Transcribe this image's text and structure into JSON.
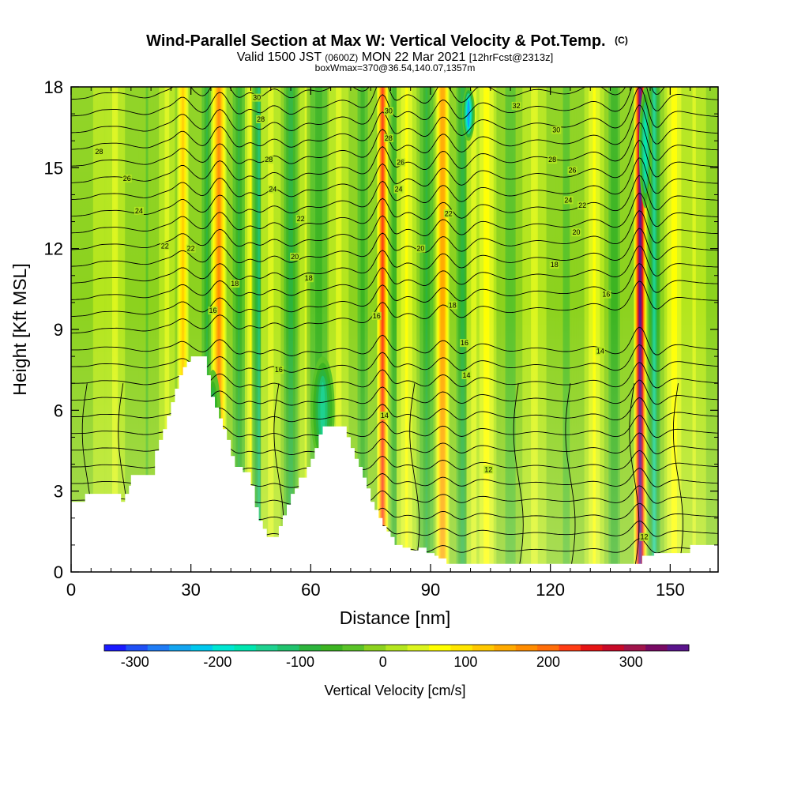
{
  "chart_data": {
    "type": "heatmap",
    "title": "Wind-Parallel Section at Max W: Vertical Velocity & Pot.Temp.",
    "title_mark": "(C)",
    "subtitle_parts": [
      "Valid 1500 JST",
      "(0600Z)",
      "MON 22 Mar 2021",
      "[12hrFcst@2313z]"
    ],
    "subtitle2": "boxWmax=370@36.54,140.07,1357m",
    "xlabel": "Distance [nm]",
    "ylabel": "Height [Kft MSL]",
    "xlim": [
      0,
      162
    ],
    "ylim": [
      0,
      18
    ],
    "xticks": [
      "0",
      "30",
      "60",
      "90",
      "120",
      "150"
    ],
    "yticks": [
      "0",
      "3",
      "6",
      "9",
      "12",
      "15",
      "18"
    ],
    "colorbar": {
      "label": "Vertical Velocity [cm/s]",
      "ticks": [
        "-300",
        "-200",
        "-100",
        "0",
        "100",
        "200",
        "300"
      ],
      "range": [
        -337,
        370
      ],
      "colors": [
        "#1a1aff",
        "#1f50f5",
        "#1f7cf5",
        "#13a5f0",
        "#00c8ee",
        "#00e6d2",
        "#00e6b0",
        "#1ed290",
        "#20c36e",
        "#2cb43c",
        "#3cb422",
        "#5ac328",
        "#8cd21e",
        "#b4e61e",
        "#dcf51e",
        "#ffff00",
        "#ffe600",
        "#ffc800",
        "#ffaa00",
        "#ff8c00",
        "#ff6e0a",
        "#ff3c14",
        "#e61414",
        "#c80a28",
        "#a0144b",
        "#780a64",
        "#5a148c"
      ]
    },
    "vertical_velocity_bands": [
      {
        "x": 7,
        "w": 1.5,
        "v": 25
      },
      {
        "x": 11,
        "w": 2.5,
        "v": 40
      },
      {
        "x": 19,
        "w": 2,
        "v": -25
      },
      {
        "x": 24,
        "w": 2,
        "v": 35
      },
      {
        "x": 28,
        "w": 1.5,
        "v": 120
      },
      {
        "x": 34,
        "w": 1.5,
        "v": -80
      },
      {
        "x": 37,
        "w": 2,
        "v": 175
      },
      {
        "x": 42,
        "w": 1.8,
        "v": -85
      },
      {
        "x": 45,
        "w": 1.5,
        "v": 65
      },
      {
        "x": 47,
        "w": 1.8,
        "v": -110
      },
      {
        "x": 50,
        "w": 2.5,
        "v": 40
      },
      {
        "x": 55,
        "w": 2,
        "v": -95
      },
      {
        "x": 59,
        "w": 1.8,
        "v": 35
      },
      {
        "x": 62,
        "w": 3,
        "v": -60
      },
      {
        "x": 67,
        "w": 2.5,
        "v": 40
      },
      {
        "x": 73,
        "w": 1.8,
        "v": -65
      },
      {
        "x": 78,
        "w": 1.4,
        "v": 230
      },
      {
        "x": 81,
        "w": 1.4,
        "v": -70
      },
      {
        "x": 84,
        "w": 2.5,
        "v": 60
      },
      {
        "x": 89,
        "w": 2,
        "v": -80
      },
      {
        "x": 93,
        "w": 1.8,
        "v": 160
      },
      {
        "x": 98,
        "w": 1.8,
        "v": -90
      },
      {
        "x": 101,
        "w": 2,
        "v": 45
      },
      {
        "x": 104,
        "w": 2.5,
        "v": 75
      },
      {
        "x": 110,
        "w": 3,
        "v": -35
      },
      {
        "x": 116,
        "w": 3,
        "v": 40
      },
      {
        "x": 124,
        "w": 3,
        "v": -30
      },
      {
        "x": 131,
        "w": 2.5,
        "v": 60
      },
      {
        "x": 136,
        "w": 2,
        "v": -70
      },
      {
        "x": 142.5,
        "w": 1.6,
        "v": 370
      },
      {
        "x": 146,
        "w": 1.8,
        "v": -130
      },
      {
        "x": 151,
        "w": 2.5,
        "v": 70
      },
      {
        "x": 156,
        "w": 3,
        "v": 30
      }
    ],
    "extreme_cores": [
      {
        "x": 99.5,
        "y0": 16,
        "y1": 18,
        "v": -240,
        "w": 1.6
      },
      {
        "x": 143.8,
        "y0": 13.5,
        "y1": 18,
        "v": -170,
        "w": 1.6
      },
      {
        "x": 63,
        "y0": 4,
        "y1": 8,
        "v": -130,
        "w": 3
      },
      {
        "x": 35.5,
        "y0": 4,
        "y1": 7.5,
        "v": -120,
        "w": 2
      }
    ],
    "terrain_heights": [
      [
        0,
        2.6
      ],
      [
        3,
        2.6
      ],
      [
        3.5,
        2.9
      ],
      [
        12,
        2.9
      ],
      [
        12.5,
        2.6
      ],
      [
        13.5,
        2.9
      ],
      [
        14.5,
        3.2
      ],
      [
        15,
        3.6
      ],
      [
        19,
        3.6
      ],
      [
        21,
        4.5
      ],
      [
        22,
        4.9
      ],
      [
        23,
        5.3
      ],
      [
        24,
        5.8
      ],
      [
        25,
        6.3
      ],
      [
        26,
        6.8
      ],
      [
        27,
        7.3
      ],
      [
        28,
        7.6
      ],
      [
        29,
        7.8
      ],
      [
        30,
        8.0
      ],
      [
        33,
        8.0
      ],
      [
        34,
        7.3
      ],
      [
        35,
        6.5
      ],
      [
        36,
        6.1
      ],
      [
        37,
        5.7
      ],
      [
        38,
        5.3
      ],
      [
        39,
        4.9
      ],
      [
        40,
        4.3
      ],
      [
        41,
        3.9
      ],
      [
        43,
        3.7
      ],
      [
        45,
        3.2
      ],
      [
        46,
        2.4
      ],
      [
        47,
        1.9
      ],
      [
        48,
        1.6
      ],
      [
        49,
        1.3
      ],
      [
        51,
        1.3
      ],
      [
        52,
        1.7
      ],
      [
        53,
        2.1
      ],
      [
        54,
        2.5
      ],
      [
        55,
        2.9
      ],
      [
        56,
        3.1
      ],
      [
        57,
        3.5
      ],
      [
        59,
        3.9
      ],
      [
        60,
        4.2
      ],
      [
        61,
        4.6
      ],
      [
        62,
        5.1
      ],
      [
        63,
        5.4
      ],
      [
        68,
        5.4
      ],
      [
        69,
        5.0
      ],
      [
        70,
        4.6
      ],
      [
        71,
        4.2
      ],
      [
        72,
        3.9
      ],
      [
        73,
        3.5
      ],
      [
        74,
        3.1
      ],
      [
        75,
        2.6
      ],
      [
        76,
        2.3
      ],
      [
        77,
        2.0
      ],
      [
        78,
        1.7
      ],
      [
        79,
        1.5
      ],
      [
        80,
        1.3
      ],
      [
        81,
        1.0
      ],
      [
        83,
        0.9
      ],
      [
        85,
        0.8
      ],
      [
        87,
        0.9
      ],
      [
        89,
        0.7
      ],
      [
        91,
        0.6
      ],
      [
        92,
        0.5
      ],
      [
        94,
        0.3
      ],
      [
        96,
        0.3
      ],
      [
        141,
        0.3
      ],
      [
        143,
        0.6
      ],
      [
        146,
        0.7
      ],
      [
        151,
        0.7
      ],
      [
        155,
        1.0
      ],
      [
        162,
        1.0
      ]
    ],
    "theta_contour_labels": [
      {
        "text": "28",
        "x": 7,
        "y": 15.6
      },
      {
        "text": "26",
        "x": 14,
        "y": 14.6
      },
      {
        "text": "24",
        "x": 17,
        "y": 13.4
      },
      {
        "text": "22",
        "x": 23.5,
        "y": 12.1
      },
      {
        "text": "22",
        "x": 30,
        "y": 12.0
      },
      {
        "text": "18",
        "x": 41,
        "y": 10.7
      },
      {
        "text": "16",
        "x": 35.5,
        "y": 9.7
      },
      {
        "text": "30",
        "x": 46.5,
        "y": 17.6
      },
      {
        "text": "28",
        "x": 47.5,
        "y": 16.8
      },
      {
        "text": "28",
        "x": 49.5,
        "y": 15.3
      },
      {
        "text": "24",
        "x": 50.5,
        "y": 14.2
      },
      {
        "text": "22",
        "x": 57.5,
        "y": 13.1
      },
      {
        "text": "20",
        "x": 56,
        "y": 11.7
      },
      {
        "text": "18",
        "x": 59.5,
        "y": 10.9
      },
      {
        "text": "16",
        "x": 52,
        "y": 7.5
      },
      {
        "text": "30",
        "x": 79.5,
        "y": 17.1
      },
      {
        "text": "28",
        "x": 79.5,
        "y": 16.1
      },
      {
        "text": "26",
        "x": 82.5,
        "y": 15.2
      },
      {
        "text": "24",
        "x": 82,
        "y": 14.2
      },
      {
        "text": "22",
        "x": 94.5,
        "y": 13.3
      },
      {
        "text": "20",
        "x": 87.5,
        "y": 12.0
      },
      {
        "text": "18",
        "x": 95.5,
        "y": 9.9
      },
      {
        "text": "16",
        "x": 76.5,
        "y": 9.5
      },
      {
        "text": "16",
        "x": 98.5,
        "y": 8.5
      },
      {
        "text": "14",
        "x": 99,
        "y": 7.3
      },
      {
        "text": "14",
        "x": 78.5,
        "y": 5.8
      },
      {
        "text": "12",
        "x": 104.5,
        "y": 3.8
      },
      {
        "text": "32",
        "x": 111.5,
        "y": 17.3
      },
      {
        "text": "30",
        "x": 121.5,
        "y": 16.4
      },
      {
        "text": "28",
        "x": 120.5,
        "y": 15.3
      },
      {
        "text": "26",
        "x": 125.5,
        "y": 14.9
      },
      {
        "text": "24",
        "x": 124.5,
        "y": 13.8
      },
      {
        "text": "22",
        "x": 128,
        "y": 13.6
      },
      {
        "text": "20",
        "x": 126.5,
        "y": 12.6
      },
      {
        "text": "18",
        "x": 121,
        "y": 11.4
      },
      {
        "text": "16",
        "x": 134,
        "y": 10.3
      },
      {
        "text": "14",
        "x": 132.5,
        "y": 8.2
      },
      {
        "text": "12",
        "x": 143.5,
        "y": 1.3
      }
    ]
  }
}
